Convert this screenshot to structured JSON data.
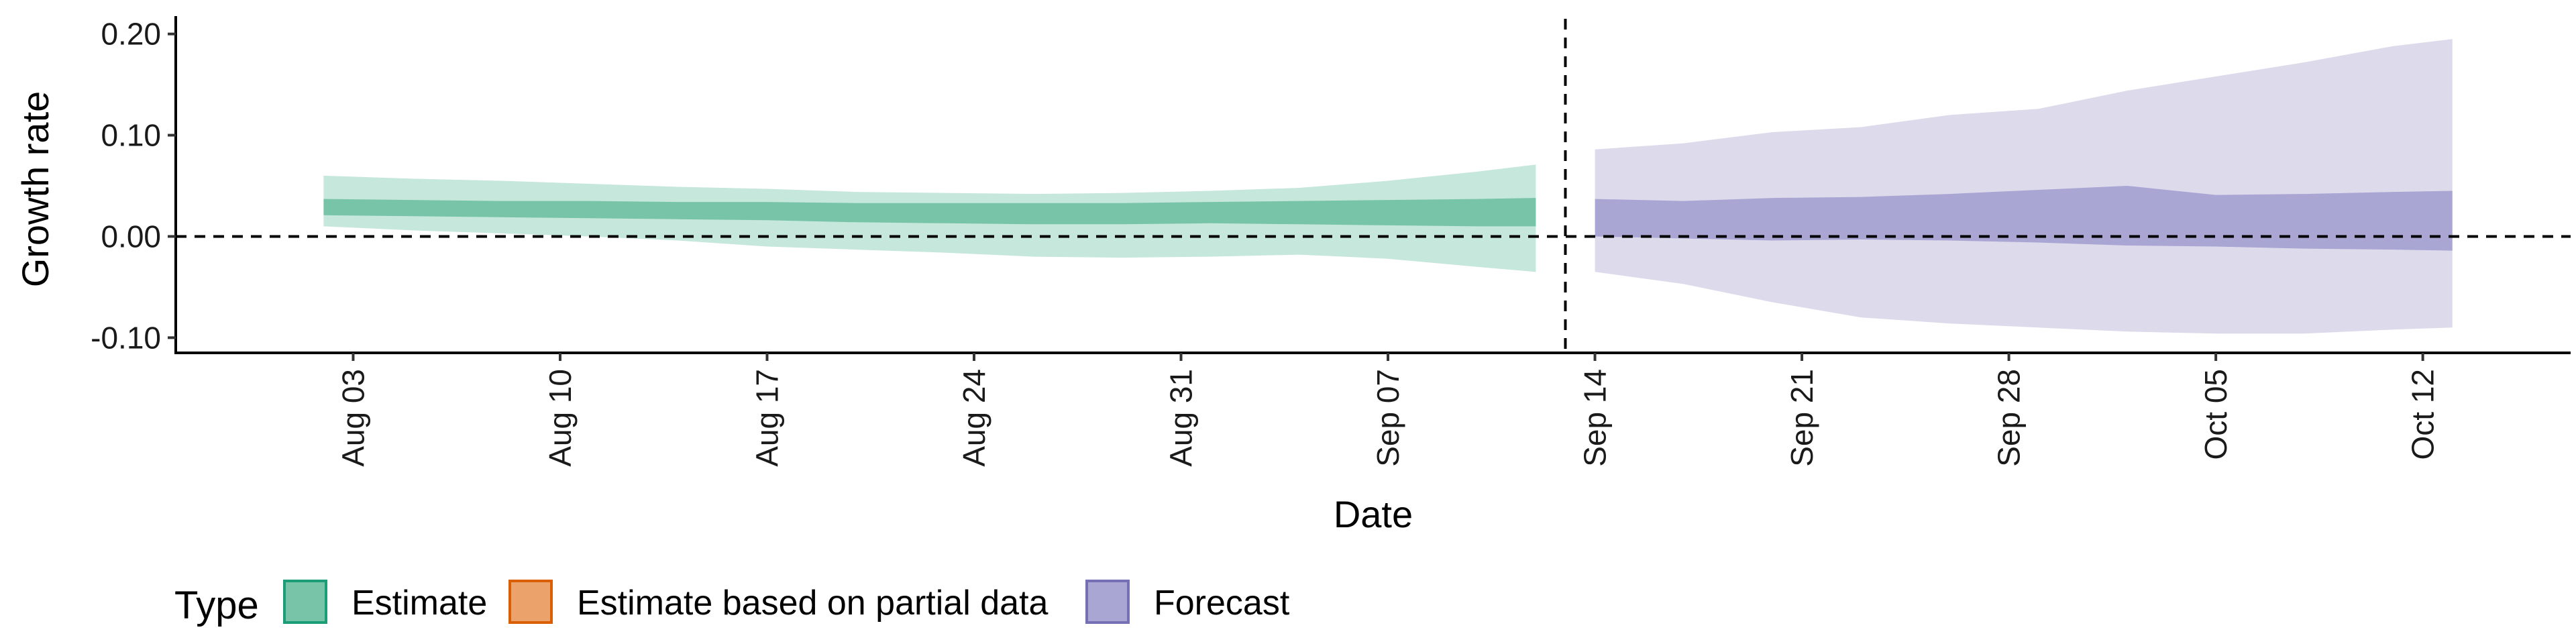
{
  "chart_data": {
    "type": "area",
    "xlabel": "Date",
    "ylabel": "Growth rate",
    "ylim": [
      -0.115,
      0.215
    ],
    "xlim": [
      "2020-07-28",
      "2020-10-17"
    ],
    "yticks": [
      0.2,
      0.1,
      0.0,
      -0.1
    ],
    "ytick_labels": [
      "0.20",
      "0.10",
      "0.00",
      "-0.10"
    ],
    "xticks": [
      "2020-08-03",
      "2020-08-10",
      "2020-08-17",
      "2020-08-24",
      "2020-08-31",
      "2020-09-07",
      "2020-09-14",
      "2020-09-21",
      "2020-09-28",
      "2020-10-05",
      "2020-10-12"
    ],
    "xtick_labels": [
      "Aug 03",
      "Aug 10",
      "Aug 17",
      "Aug 24",
      "Aug 31",
      "Sep 07",
      "Sep 14",
      "Sep 21",
      "Sep 28",
      "Oct 05",
      "Oct 12"
    ],
    "hline_y": 0,
    "vline_x": "2020-09-13",
    "grid": false,
    "legend_title": "Type",
    "legend_position": "bottom-left",
    "legend": [
      {
        "name": "Estimate",
        "fill": "#77c4a8",
        "stroke": "#1b9e77"
      },
      {
        "name": "Estimate based on partial data",
        "fill": "#eba36b",
        "stroke": "#d95f02"
      },
      {
        "name": "Forecast",
        "fill": "#a9a6d4",
        "stroke": "#7570b3"
      }
    ],
    "series": [
      {
        "name": "Estimate",
        "outer_fill": "#c6e7db",
        "inner_fill": "#77c4a8",
        "x": [
          "2020-08-02",
          "2020-08-05",
          "2020-08-08",
          "2020-08-11",
          "2020-08-14",
          "2020-08-17",
          "2020-08-20",
          "2020-08-23",
          "2020-08-26",
          "2020-08-29",
          "2020-09-01",
          "2020-09-04",
          "2020-09-07",
          "2020-09-10",
          "2020-09-12"
        ],
        "outer_upper": [
          0.06,
          0.057,
          0.055,
          0.052,
          0.049,
          0.047,
          0.044,
          0.043,
          0.042,
          0.043,
          0.045,
          0.048,
          0.055,
          0.064,
          0.071
        ],
        "outer_lower": [
          0.01,
          0.006,
          0.003,
          0.0,
          -0.004,
          -0.01,
          -0.013,
          -0.016,
          -0.02,
          -0.021,
          -0.02,
          -0.018,
          -0.022,
          -0.03,
          -0.035
        ],
        "inner_upper": [
          0.037,
          0.036,
          0.035,
          0.035,
          0.034,
          0.034,
          0.033,
          0.033,
          0.033,
          0.033,
          0.034,
          0.035,
          0.036,
          0.037,
          0.038
        ],
        "inner_lower": [
          0.021,
          0.02,
          0.019,
          0.018,
          0.017,
          0.016,
          0.014,
          0.013,
          0.012,
          0.012,
          0.013,
          0.012,
          0.011,
          0.01,
          0.01
        ]
      },
      {
        "name": "Forecast",
        "outer_fill": "#dcdaeb",
        "inner_fill": "#a9a6d4",
        "x": [
          "2020-09-14",
          "2020-09-17",
          "2020-09-20",
          "2020-09-23",
          "2020-09-26",
          "2020-09-29",
          "2020-10-02",
          "2020-10-05",
          "2020-10-08",
          "2020-10-11",
          "2020-10-13"
        ],
        "outer_upper": [
          0.086,
          0.092,
          0.103,
          0.108,
          0.12,
          0.126,
          0.144,
          0.158,
          0.172,
          0.188,
          0.195
        ],
        "outer_lower": [
          -0.035,
          -0.047,
          -0.065,
          -0.08,
          -0.086,
          -0.09,
          -0.094,
          -0.096,
          -0.096,
          -0.092,
          -0.09
        ],
        "inner_upper": [
          0.037,
          0.035,
          0.038,
          0.039,
          0.042,
          0.046,
          0.05,
          0.041,
          0.042,
          0.044,
          0.045
        ],
        "inner_lower": [
          0.0,
          -0.002,
          -0.004,
          -0.003,
          -0.004,
          -0.006,
          -0.009,
          -0.01,
          -0.012,
          -0.013,
          -0.014
        ]
      }
    ]
  }
}
